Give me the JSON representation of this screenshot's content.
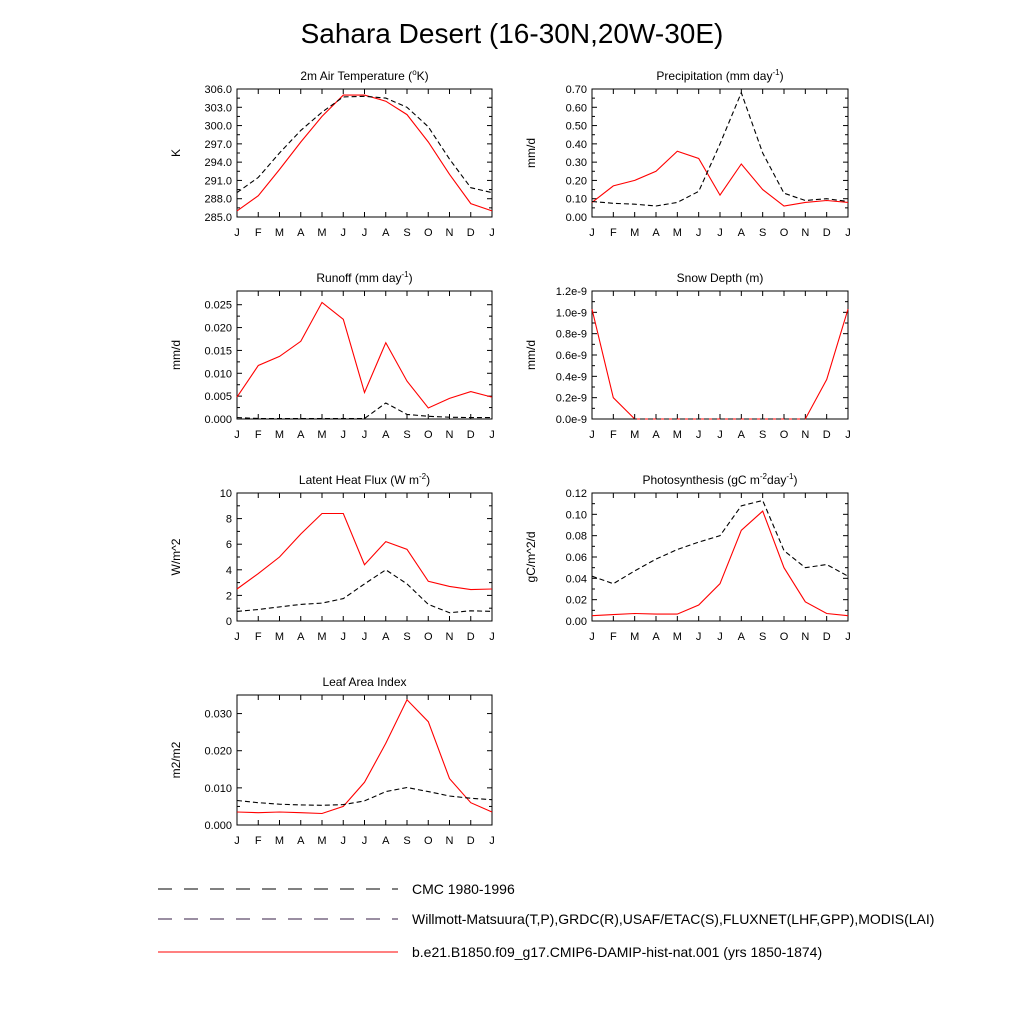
{
  "page": {
    "title": "Sahara Desert (16-30N,20W-30E)"
  },
  "styles": {
    "model_color": "#ff0000",
    "obs_color": "#000000",
    "obs2_color": "#3333cc"
  },
  "legend": [
    {
      "label": "CMC 1980-1996",
      "style": "dashed",
      "color": "#000000"
    },
    {
      "label": "Willmott-Matsuura(T,P),GRDC(R),USAF/ETAC(S),FLUXNET(LHF,GPP),MODIS(LAI)",
      "style": "dashed",
      "color": "#000000"
    },
    {
      "label": "b.e21.B1850.f09_g17.CMIP6-DAMIP-hist-nat.001 (yrs 1850-1874)",
      "style": "solid",
      "color": "#ff0000"
    }
  ],
  "chart_data": [
    {
      "type": "line",
      "title": "2m Air Temperature (",
      "title_sup": "o",
      "title_post": "K)",
      "ylabel": "K",
      "x": [
        "J",
        "F",
        "M",
        "A",
        "M",
        "J",
        "J",
        "A",
        "S",
        "O",
        "N",
        "D",
        "J"
      ],
      "ylim": [
        285.0,
        306.0
      ],
      "yticks": [
        "285.0",
        "288.0",
        "291.0",
        "294.0",
        "297.0",
        "300.0",
        "303.0",
        "306.0"
      ],
      "series": [
        {
          "values": [
            286.0,
            288.5,
            292.8,
            297.3,
            301.5,
            305.0,
            305.0,
            304.0,
            301.8,
            297.3,
            292.0,
            287.2,
            286.0
          ],
          "style": "solid",
          "color": "#ff0000"
        },
        {
          "values": [
            289.0,
            291.5,
            295.5,
            299.2,
            302.2,
            304.7,
            304.8,
            304.5,
            303.0,
            299.8,
            294.5,
            289.8,
            289.0
          ],
          "style": "dashed",
          "color": "#000000"
        }
      ]
    },
    {
      "type": "line",
      "title": "Precipitation (mm day",
      "title_sup": "-1",
      "title_post": ")",
      "ylabel": "mm/d",
      "x": [
        "J",
        "F",
        "M",
        "A",
        "M",
        "J",
        "J",
        "A",
        "S",
        "O",
        "N",
        "D",
        "J"
      ],
      "ylim": [
        0.0,
        0.7
      ],
      "yticks": [
        "0.00",
        "0.10",
        "0.20",
        "0.30",
        "0.40",
        "0.50",
        "0.60",
        "0.70"
      ],
      "series": [
        {
          "values": [
            0.08,
            0.17,
            0.2,
            0.25,
            0.36,
            0.32,
            0.12,
            0.29,
            0.15,
            0.06,
            0.08,
            0.09,
            0.08
          ],
          "style": "solid",
          "color": "#ff0000"
        },
        {
          "values": [
            0.085,
            0.075,
            0.07,
            0.06,
            0.08,
            0.14,
            0.4,
            0.68,
            0.35,
            0.13,
            0.09,
            0.1,
            0.085
          ],
          "style": "dashed",
          "color": "#000000"
        }
      ]
    },
    {
      "type": "line",
      "title": "Runoff (mm day",
      "title_sup": "-1",
      "title_post": ")",
      "ylabel": "mm/d",
      "x": [
        "J",
        "F",
        "M",
        "A",
        "M",
        "J",
        "J",
        "A",
        "S",
        "O",
        "N",
        "D",
        "J"
      ],
      "ylim": [
        0.0,
        0.028
      ],
      "yticks": [
        "0.000",
        "0.005",
        "0.010",
        "0.015",
        "0.020",
        "0.025"
      ],
      "ytickvals": [
        0.0,
        0.005,
        0.01,
        0.015,
        0.02,
        0.025
      ],
      "series": [
        {
          "values": [
            0.0048,
            0.0117,
            0.0137,
            0.017,
            0.0255,
            0.0218,
            0.0058,
            0.0167,
            0.0083,
            0.0024,
            0.0045,
            0.006,
            0.0048
          ],
          "style": "solid",
          "color": "#ff0000"
        },
        {
          "values": [
            0.0003,
            0.0001,
            0.0001,
            0.0001,
            0.0001,
            0.0001,
            0.0001,
            0.0035,
            0.001,
            0.0006,
            0.0004,
            0.0003,
            0.0003
          ],
          "style": "dashed",
          "color": "#000000"
        }
      ]
    },
    {
      "type": "line",
      "title": "Snow Depth (m)",
      "title_sup": "",
      "title_post": "",
      "ylabel": "mm/d",
      "x": [
        "J",
        "F",
        "M",
        "A",
        "M",
        "J",
        "J",
        "A",
        "S",
        "O",
        "N",
        "D",
        "J"
      ],
      "ylim": [
        0.0,
        1.2
      ],
      "yticks": [
        "0.0e-9",
        "0.2e-9",
        "0.4e-9",
        "0.6e-9",
        "0.8e-9",
        "1.0e-9",
        "1.2e-9"
      ],
      "series": [
        {
          "values": [
            1.03,
            0.2,
            0.0,
            0.0,
            0.0,
            0.0,
            0.0,
            0.0,
            0.0,
            0.0,
            0.0,
            0.37,
            1.03
          ],
          "style": "solid",
          "color": "#ff0000"
        },
        {
          "values": [
            0.0,
            0.0,
            0.0,
            0.0,
            0.0,
            0.0,
            0.0,
            0.0,
            0.0,
            0.0,
            0.0,
            0.0,
            0.0
          ],
          "style": "dashed",
          "color": "#000000"
        }
      ]
    },
    {
      "type": "line",
      "title": "Latent Heat Flux (W m",
      "title_sup": "-2",
      "title_post": ")",
      "ylabel": "W/m^2",
      "x": [
        "J",
        "F",
        "M",
        "A",
        "M",
        "J",
        "J",
        "A",
        "S",
        "O",
        "N",
        "D",
        "J"
      ],
      "ylim": [
        0,
        10
      ],
      "yticks": [
        "0",
        "2",
        "4",
        "6",
        "8",
        "10"
      ],
      "series": [
        {
          "values": [
            2.5,
            3.7,
            5.0,
            6.8,
            8.4,
            8.4,
            4.4,
            6.2,
            5.6,
            3.1,
            2.7,
            2.45,
            2.5
          ],
          "style": "solid",
          "color": "#ff0000"
        },
        {
          "values": [
            0.75,
            0.9,
            1.1,
            1.3,
            1.4,
            1.75,
            2.9,
            4.0,
            2.9,
            1.3,
            0.65,
            0.8,
            0.75
          ],
          "style": "dashed",
          "color": "#000000"
        }
      ]
    },
    {
      "type": "line",
      "title": "Photosynthesis (gC m",
      "title_sup": "-2",
      "title_post": "day",
      "title_sup2": "-1",
      "title_post2": ")",
      "ylabel": "gC/m^2/d",
      "x": [
        "J",
        "F",
        "M",
        "A",
        "M",
        "J",
        "J",
        "A",
        "S",
        "O",
        "N",
        "D",
        "J"
      ],
      "ylim": [
        0.0,
        0.12
      ],
      "yticks": [
        "0.00",
        "0.02",
        "0.04",
        "0.06",
        "0.08",
        "0.10",
        "0.12"
      ],
      "series": [
        {
          "values": [
            0.005,
            0.006,
            0.007,
            0.0065,
            0.0065,
            0.015,
            0.035,
            0.085,
            0.103,
            0.05,
            0.018,
            0.007,
            0.005
          ],
          "style": "solid",
          "color": "#ff0000"
        },
        {
          "values": [
            0.042,
            0.035,
            0.047,
            0.058,
            0.067,
            0.074,
            0.08,
            0.108,
            0.113,
            0.066,
            0.05,
            0.053,
            0.042
          ],
          "style": "dashed",
          "color": "#000000"
        }
      ]
    },
    {
      "type": "line",
      "title": "Leaf Area Index",
      "title_sup": "",
      "title_post": "",
      "ylabel": "m2/m2",
      "x": [
        "J",
        "F",
        "M",
        "A",
        "M",
        "J",
        "J",
        "A",
        "S",
        "O",
        "N",
        "D",
        "J"
      ],
      "ylim": [
        0.0,
        0.035
      ],
      "yticks": [
        "0.000",
        "0.010",
        "0.020",
        "0.030"
      ],
      "ytickvals": [
        0.0,
        0.01,
        0.02,
        0.03
      ],
      "series": [
        {
          "values": [
            0.0035,
            0.0033,
            0.0035,
            0.0033,
            0.0031,
            0.005,
            0.0115,
            0.022,
            0.0337,
            0.0278,
            0.0125,
            0.006,
            0.0035
          ],
          "style": "solid",
          "color": "#ff0000"
        },
        {
          "values": [
            0.0066,
            0.006,
            0.0056,
            0.0054,
            0.0053,
            0.0055,
            0.0065,
            0.009,
            0.0101,
            0.009,
            0.0078,
            0.0072,
            0.0068
          ],
          "style": "dashed",
          "color": "#000000"
        }
      ]
    }
  ]
}
